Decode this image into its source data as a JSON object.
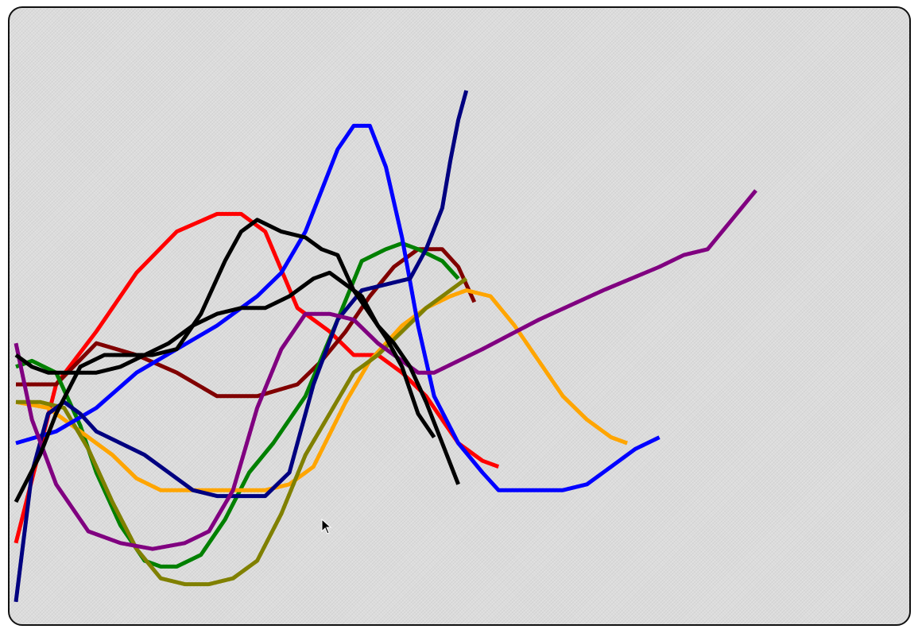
{
  "chart_data": {
    "type": "line",
    "title": "",
    "xlabel": "",
    "ylabel": "",
    "xlim": [
      0,
      100
    ],
    "ylim": [
      0,
      100
    ],
    "grid": false,
    "legend": "none",
    "series": [
      {
        "color": "#ff0000",
        "x": [
          0,
          5,
          10,
          15,
          20,
          25,
          28,
          31,
          35,
          39,
          42,
          45,
          48,
          51,
          55,
          58,
          60
        ],
        "y": [
          13,
          40,
          49,
          59,
          66,
          69,
          69,
          66,
          53,
          49,
          45,
          45,
          42,
          38,
          30,
          27,
          26
        ]
      },
      {
        "color": "#800000",
        "x": [
          0,
          5,
          10,
          15,
          20,
          25,
          30,
          35,
          38,
          41,
          44,
          47,
          50,
          53,
          55,
          57
        ],
        "y": [
          40,
          40,
          47,
          45,
          42,
          38,
          38,
          40,
          44,
          49,
          55,
          60,
          63,
          63,
          60,
          54
        ]
      },
      {
        "color": "#008000",
        "x": [
          0,
          2,
          5,
          8,
          10,
          13,
          16,
          18,
          20,
          23,
          26,
          29,
          32,
          36,
          40,
          43,
          46,
          48,
          50,
          53,
          55
        ],
        "y": [
          43,
          44,
          42,
          33,
          25,
          16,
          10,
          9,
          9,
          11,
          17,
          25,
          30,
          38,
          51,
          61,
          63,
          64,
          63,
          61,
          58
        ]
      },
      {
        "color": "#ffa500",
        "x": [
          0,
          4,
          8,
          12,
          15,
          18,
          22,
          27,
          31,
          34,
          37,
          41,
          44,
          48,
          51,
          54,
          56,
          59,
          62,
          65,
          68,
          71,
          74,
          76
        ],
        "y": [
          37,
          36,
          32,
          28,
          24,
          22,
          22,
          22,
          22,
          23,
          26,
          37,
          44,
          50,
          53,
          55,
          56,
          55,
          50,
          44,
          38,
          34,
          31,
          30
        ]
      },
      {
        "color": "#808000",
        "x": [
          0,
          3,
          6,
          9,
          12,
          15,
          18,
          21,
          24,
          27,
          30,
          33,
          36,
          39,
          42,
          45,
          48,
          51,
          54,
          56
        ],
        "y": [
          37,
          37,
          36,
          29,
          20,
          12,
          7,
          6,
          6,
          7,
          10,
          18,
          28,
          35,
          42,
          45,
          49,
          53,
          56,
          58
        ]
      },
      {
        "color": "#0000ff",
        "x": [
          0,
          5,
          10,
          15,
          20,
          25,
          30,
          33,
          36,
          38,
          40,
          42,
          44,
          46,
          48,
          50,
          52,
          55,
          58,
          60,
          62,
          65,
          68,
          71,
          74,
          77,
          80
        ],
        "y": [
          30,
          32,
          36,
          42,
          46,
          50,
          55,
          59,
          66,
          73,
          80,
          84,
          84,
          77,
          65,
          50,
          38,
          30,
          25,
          22,
          22,
          22,
          22,
          23,
          26,
          29,
          31
        ]
      },
      {
        "color": "#000080",
        "x": [
          0,
          2,
          4,
          6,
          8,
          10,
          13,
          16,
          19,
          22,
          25,
          28,
          31,
          34,
          37,
          40,
          43,
          46,
          49,
          51,
          53,
          54,
          55,
          56
        ],
        "y": [
          3,
          25,
          35,
          37,
          35,
          32,
          30,
          28,
          25,
          22,
          21,
          21,
          21,
          25,
          40,
          51,
          56,
          57,
          58,
          63,
          70,
          78,
          85,
          90
        ]
      },
      {
        "color": "#800080",
        "x": [
          0,
          2,
          5,
          9,
          13,
          17,
          21,
          24,
          27,
          30,
          33,
          36,
          39,
          42,
          45,
          48,
          50,
          52,
          58,
          65,
          73,
          80,
          83,
          86,
          89,
          92
        ],
        "y": [
          47,
          34,
          23,
          15,
          13,
          12,
          13,
          15,
          22,
          36,
          46,
          52,
          52,
          51,
          47,
          44,
          42,
          42,
          46,
          51,
          56,
          60,
          62,
          63,
          68,
          73
        ]
      },
      {
        "color": "#000000",
        "x": [
          0,
          3,
          5,
          8,
          11,
          14,
          17,
          20,
          23,
          26,
          28,
          30,
          33,
          36,
          38,
          40,
          42,
          44,
          46,
          48,
          50,
          52
        ],
        "y": [
          20,
          28,
          35,
          43,
          45,
          45,
          45,
          46,
          52,
          61,
          66,
          68,
          66,
          65,
          63,
          62,
          56,
          52,
          48,
          43,
          35,
          31
        ]
      },
      {
        "color": "#000000",
        "x": [
          0,
          2,
          4,
          7,
          10,
          13,
          16,
          19,
          22,
          25,
          28,
          31,
          34,
          37,
          39,
          41,
          43,
          45,
          47,
          49,
          51,
          53,
          55
        ],
        "y": [
          45,
          43,
          42,
          42,
          42,
          43,
          45,
          47,
          50,
          52,
          53,
          53,
          55,
          58,
          59,
          57,
          55,
          50,
          47,
          43,
          37,
          30,
          23
        ]
      }
    ]
  }
}
